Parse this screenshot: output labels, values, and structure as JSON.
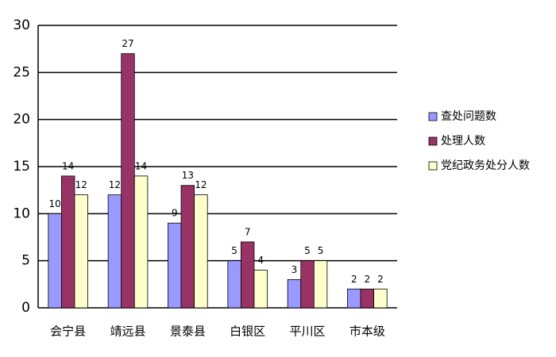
{
  "chart_data": {
    "type": "bar",
    "categories": [
      "会宁县",
      "靖远县",
      "景泰县",
      "白银区",
      "平川区",
      "市本级"
    ],
    "series": [
      {
        "name": "查处问题数",
        "color": "#9999ff",
        "values": [
          10,
          12,
          9,
          5,
          3,
          2
        ]
      },
      {
        "name": "处理人数",
        "color": "#993366",
        "values": [
          14,
          27,
          13,
          7,
          5,
          2
        ]
      },
      {
        "name": "党纪政务处分人数",
        "color": "#ffffcc",
        "values": [
          12,
          14,
          12,
          4,
          5,
          2
        ]
      }
    ],
    "ylim": [
      0,
      30
    ],
    "yticks": [
      0,
      5,
      10,
      15,
      20,
      25,
      30
    ],
    "grid": true,
    "legend": "right"
  }
}
